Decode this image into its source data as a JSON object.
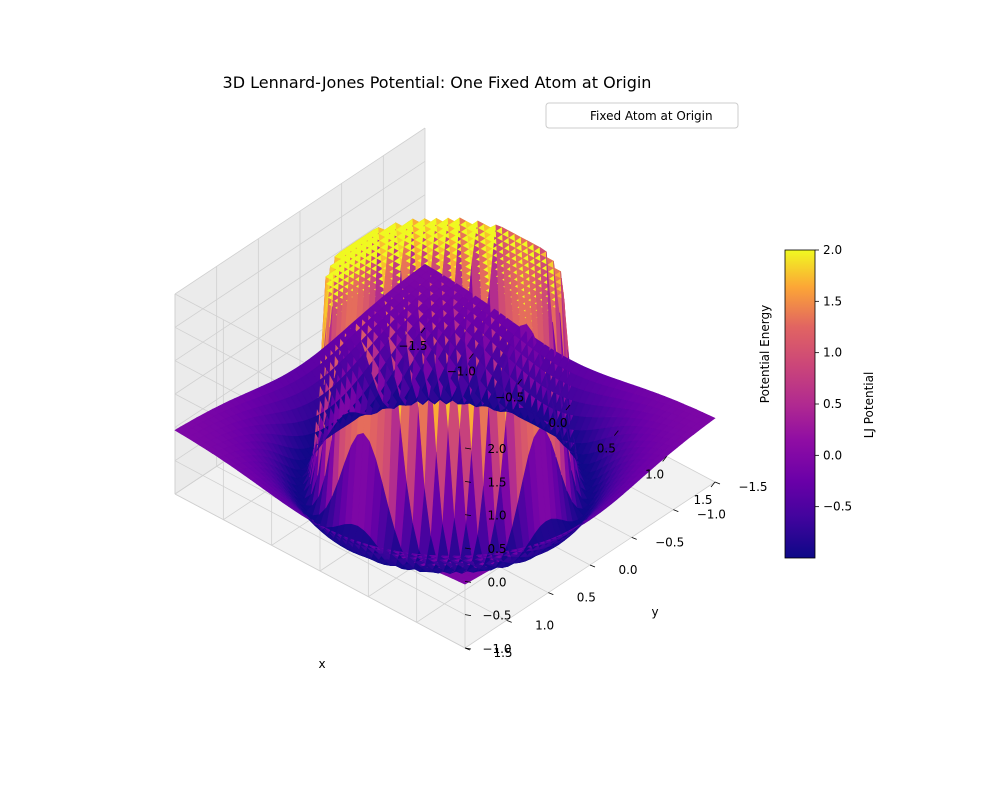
{
  "chart_data": {
    "type": "surface3d",
    "title": "3D Lennard-Jones Potential: One Fixed Atom at Origin",
    "xlabel": "x",
    "ylabel": "y",
    "zlabel": "Potential Energy",
    "xlim": [
      -1.5,
      1.5
    ],
    "ylim": [
      -1.5,
      1.5
    ],
    "zlim": [
      -1.0,
      2.0
    ],
    "x_ticks": [
      "−1.5",
      "−1.0",
      "−0.5",
      "0.0",
      "0.5",
      "1.0",
      "1.5"
    ],
    "y_ticks": [
      "−1.5",
      "−1.0",
      "−0.5",
      "0.0",
      "0.5",
      "1.0",
      "1.5"
    ],
    "z_ticks": [
      "−1.0",
      "−0.5",
      "0.0",
      "0.5",
      "1.0",
      "1.5",
      "2.0"
    ],
    "clip_max": 2.0,
    "epsilon": 1.0,
    "sigma": 1.0,
    "colormap": "plasma",
    "colorbar": {
      "label": "LJ Potential",
      "range": [
        -1.0,
        2.0
      ],
      "ticks": [
        "−0.5",
        "0.0",
        "0.5",
        "1.0",
        "1.5",
        "2.0"
      ]
    },
    "legend": {
      "entries": [
        "Fixed Atom at Origin"
      ],
      "placement": "top-right"
    },
    "grid": true
  }
}
